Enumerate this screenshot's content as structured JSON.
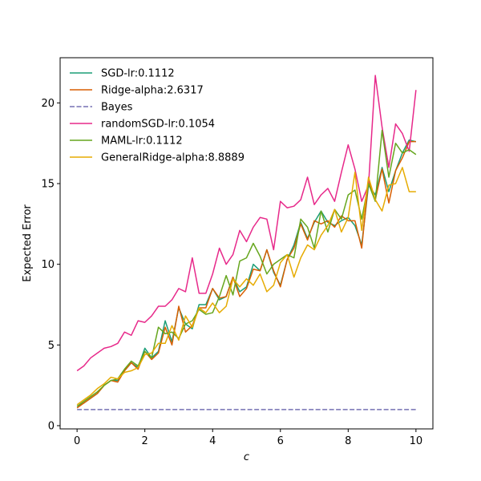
{
  "chart_data": {
    "type": "line",
    "title": "",
    "xlabel": "c",
    "ylabel": "Expected Error",
    "xlim": [
      -0.5,
      10.5
    ],
    "ylim": [
      -0.2,
      22.8
    ],
    "xticks": [
      0,
      2,
      4,
      6,
      8,
      10
    ],
    "yticks": [
      0,
      5,
      10,
      15,
      20
    ],
    "grid": false,
    "legend_position": "upper-left",
    "x": [
      0,
      0.2,
      0.4,
      0.6,
      0.8,
      1.0,
      1.2,
      1.4,
      1.6,
      1.8,
      2.0,
      2.2,
      2.4,
      2.6,
      2.8,
      3.0,
      3.2,
      3.4,
      3.6,
      3.8,
      4.0,
      4.2,
      4.4,
      4.6,
      4.8,
      5.0,
      5.2,
      5.4,
      5.6,
      5.8,
      6.0,
      6.2,
      6.4,
      6.6,
      6.8,
      7.0,
      7.2,
      7.4,
      7.6,
      7.8,
      8.0,
      8.2,
      8.4,
      8.6,
      8.8,
      9.0,
      9.2,
      9.4,
      9.6,
      9.8,
      10.0
    ],
    "series": [
      {
        "name": "SGD-lr:0.1112",
        "color": "#1b9e77",
        "dash": "solid",
        "values": [
          1.2,
          1.4,
          1.7,
          2.0,
          2.5,
          2.8,
          2.8,
          3.4,
          3.9,
          3.6,
          4.8,
          4.2,
          4.6,
          6.5,
          5.2,
          7.3,
          6.3,
          6.0,
          7.5,
          7.5,
          8.5,
          7.8,
          8.0,
          9.2,
          8.3,
          8.6,
          10.0,
          9.6,
          10.9,
          9.5,
          8.7,
          10.3,
          11.2,
          12.6,
          11.6,
          12.6,
          13.3,
          12.6,
          12.4,
          12.7,
          12.9,
          12.4,
          11.2,
          14.9,
          14.3,
          16.0,
          14.5,
          15.8,
          16.9,
          17.7,
          17.6
        ]
      },
      {
        "name": "Ridge-alpha:2.6317",
        "color": "#d95f02",
        "dash": "solid",
        "values": [
          1.1,
          1.4,
          1.7,
          2.0,
          2.5,
          2.8,
          2.7,
          3.4,
          3.9,
          3.5,
          4.6,
          4.1,
          4.5,
          6.1,
          5.0,
          7.4,
          5.8,
          6.2,
          7.3,
          7.3,
          8.5,
          7.9,
          8.0,
          9.2,
          8.0,
          8.5,
          9.7,
          9.6,
          10.9,
          9.6,
          8.6,
          10.3,
          11.0,
          12.5,
          11.5,
          12.7,
          12.5,
          12.7,
          12.3,
          13.0,
          12.7,
          12.7,
          11.0,
          15.2,
          14.0,
          15.9,
          13.8,
          15.8,
          16.6,
          17.6,
          17.6
        ]
      },
      {
        "name": "Bayes",
        "color": "#7570b3",
        "dash": "dashed",
        "values": [
          1.0,
          1.0,
          1.0,
          1.0,
          1.0,
          1.0,
          1.0,
          1.0,
          1.0,
          1.0,
          1.0,
          1.0,
          1.0,
          1.0,
          1.0,
          1.0,
          1.0,
          1.0,
          1.0,
          1.0,
          1.0,
          1.0,
          1.0,
          1.0,
          1.0,
          1.0,
          1.0,
          1.0,
          1.0,
          1.0,
          1.0,
          1.0,
          1.0,
          1.0,
          1.0,
          1.0,
          1.0,
          1.0,
          1.0,
          1.0,
          1.0,
          1.0,
          1.0,
          1.0,
          1.0,
          1.0,
          1.0,
          1.0,
          1.0,
          1.0,
          1.0
        ]
      },
      {
        "name": "randomSGD-lr:0.1054",
        "color": "#e7298a",
        "dash": "solid",
        "values": [
          3.4,
          3.7,
          4.2,
          4.5,
          4.8,
          4.9,
          5.1,
          5.8,
          5.6,
          6.5,
          6.4,
          6.8,
          7.4,
          7.4,
          7.8,
          8.5,
          8.3,
          10.4,
          8.2,
          8.2,
          9.4,
          11.0,
          10.0,
          10.6,
          12.1,
          11.4,
          12.3,
          12.9,
          12.8,
          10.9,
          13.9,
          13.5,
          13.6,
          14.0,
          15.4,
          13.7,
          14.3,
          14.7,
          13.9,
          15.7,
          17.4,
          15.9,
          13.9,
          14.9,
          21.7,
          18.5,
          16.0,
          18.7,
          18.1,
          17.0,
          20.8
        ]
      },
      {
        "name": "MAML-lr:0.1112",
        "color": "#66a61e",
        "dash": "solid",
        "values": [
          1.2,
          1.5,
          1.8,
          2.1,
          2.5,
          2.8,
          2.9,
          3.5,
          4.0,
          3.7,
          4.6,
          4.2,
          6.1,
          5.7,
          5.8,
          5.4,
          6.3,
          6.5,
          7.2,
          6.9,
          7.0,
          8.0,
          9.3,
          8.1,
          10.2,
          10.4,
          11.3,
          10.5,
          9.4,
          10.0,
          10.3,
          10.6,
          10.4,
          12.8,
          12.3,
          11.0,
          13.3,
          12.0,
          13.4,
          12.8,
          14.3,
          14.6,
          12.8,
          15.0,
          13.9,
          18.3,
          15.4,
          17.5,
          16.9,
          17.1,
          16.8
        ]
      },
      {
        "name": "GeneralRidge-alpha:8.8889",
        "color": "#e6ab02",
        "dash": "solid",
        "values": [
          1.3,
          1.6,
          1.9,
          2.3,
          2.6,
          3.0,
          2.9,
          3.3,
          3.4,
          3.6,
          4.4,
          4.5,
          5.1,
          5.1,
          6.2,
          5.3,
          6.8,
          6.1,
          7.3,
          7.0,
          7.6,
          7.0,
          7.4,
          9.1,
          8.6,
          9.1,
          8.7,
          9.4,
          8.3,
          8.7,
          10.1,
          10.6,
          9.2,
          10.4,
          11.2,
          10.9,
          11.8,
          12.4,
          13.4,
          12.0,
          12.9,
          15.7,
          12.1,
          15.4,
          14.0,
          13.3,
          14.9,
          15.0,
          16.0,
          14.5,
          14.5
        ]
      }
    ]
  }
}
